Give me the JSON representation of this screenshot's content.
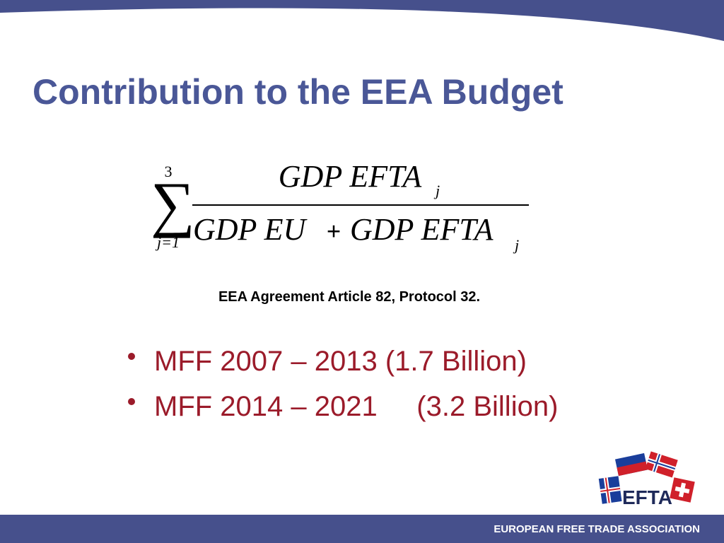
{
  "header": {
    "title": "Contribution to the EEA Budget"
  },
  "formula": {
    "upper_limit": "3",
    "numerator": "GDP EFTA",
    "numerator_index": "j",
    "denominator_left": "GDP EU",
    "operator": "+",
    "denominator_right": "GDP EFTA",
    "denominator_index": "j",
    "lower_limit": "j=1"
  },
  "caption": "EEA Agreement Article 82, Protocol 32.",
  "bullets": [
    "MFF 2007 – 2013 (1.7 Billion)",
    "MFF 2014 – 2021     (3.2 Billion)"
  ],
  "logo": {
    "text": "EFTA"
  },
  "footer": {
    "text": "EUROPEAN FREE TRADE ASSOCIATION"
  }
}
